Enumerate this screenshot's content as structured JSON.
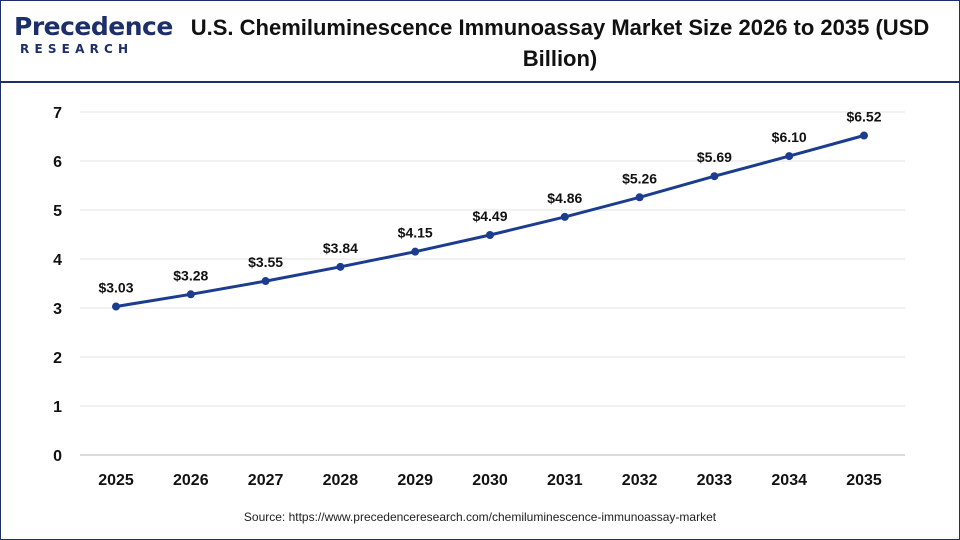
{
  "logo": {
    "name": "Precedence",
    "tagline": "RESEARCH"
  },
  "title": "U.S. Chemiluminescence Immunoassay Market Size 2026 to 2035 (USD Billion)",
  "source": "Source: https://www.precedenceresearch.com/chemiluminescence-immunoassay-market",
  "chart_data": {
    "type": "line",
    "title": "U.S. Chemiluminescence Immunoassay Market Size 2026 to 2035 (USD Billion)",
    "xlabel": "",
    "ylabel": "",
    "categories": [
      "2025",
      "2026",
      "2027",
      "2028",
      "2029",
      "2030",
      "2031",
      "2032",
      "2033",
      "2034",
      "2035"
    ],
    "values": [
      3.03,
      3.28,
      3.55,
      3.84,
      4.15,
      4.49,
      4.86,
      5.26,
      5.69,
      6.1,
      6.52
    ],
    "data_labels": [
      "$3.03",
      "$3.28",
      "$3.55",
      "$3.84",
      "$4.15",
      "$4.49",
      "$4.86",
      "$5.26",
      "$5.69",
      "$6.10",
      "$6.52"
    ],
    "yticks": [
      0,
      1,
      2,
      3,
      4,
      5,
      6,
      7
    ],
    "ylim": [
      0,
      7
    ],
    "grid": true,
    "legend": "none",
    "line_color": "#1c3d8f"
  }
}
